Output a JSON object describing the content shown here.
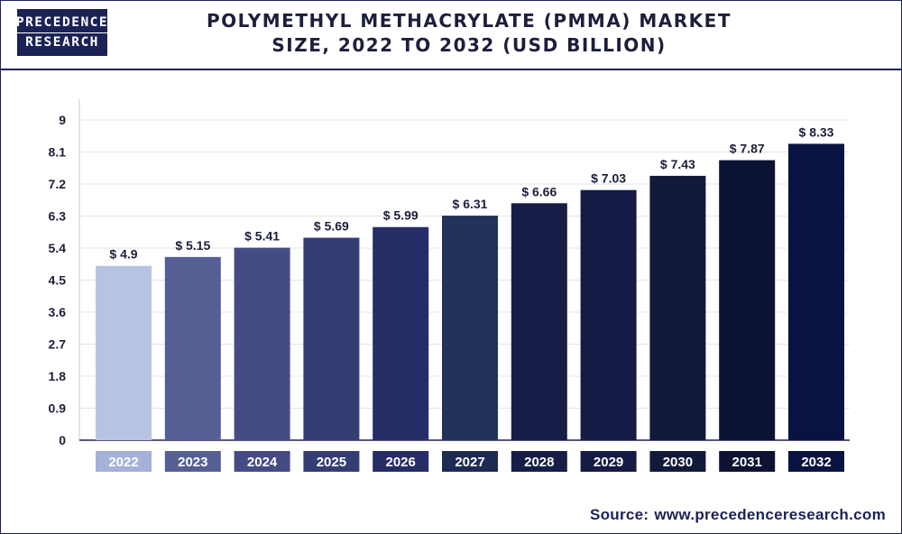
{
  "logo": {
    "line1": "PRECEDENCE",
    "line2": "RESEARCH"
  },
  "title": {
    "line1": "POLYMETHYL METHACRYLATE (PMMA) MARKET",
    "line2": "SIZE, 2022 TO 2032 (USD BILLION)"
  },
  "source": {
    "label": "Source:",
    "value": "www.precedenceresearch.com"
  },
  "chart_data": {
    "type": "bar",
    "title": "POLYMETHYL METHACRYLATE (PMMA) MARKET SIZE, 2022 TO 2032 (USD BILLION)",
    "xlabel": "",
    "ylabel": "",
    "categories": [
      "2022",
      "2023",
      "2024",
      "2025",
      "2026",
      "2027",
      "2028",
      "2029",
      "2030",
      "2031",
      "2032"
    ],
    "values": [
      4.9,
      5.15,
      5.41,
      5.69,
      5.99,
      6.31,
      6.66,
      7.03,
      7.43,
      7.87,
      8.33
    ],
    "value_labels": [
      "$ 4.9",
      "$ 5.15",
      "$ 5.41",
      "$ 5.69",
      "$ 5.99",
      "$ 6.31",
      "$ 6.66",
      "$ 7.03",
      "$ 7.43",
      "$ 7.87",
      "$ 8.33"
    ],
    "yticks": [
      "0",
      "0.9",
      "1.8",
      "2.7",
      "3.6",
      "4.5",
      "5.4",
      "6.3",
      "7.2",
      "8.1",
      "9"
    ],
    "ylim": [
      0,
      9
    ],
    "grid": true,
    "bar_colors": [
      "#b8c3e4",
      "#565f94",
      "#454c85",
      "#353d75",
      "#262d66",
      "#223259",
      "#161e47",
      "#141b44",
      "#121a3b",
      "#0c1233",
      "#0a1241"
    ],
    "category_box_colors": [
      "#a5b1d9",
      "#565f94",
      "#454c85",
      "#353d75",
      "#262d66",
      "#1e2a52",
      "#161e47",
      "#141b44",
      "#121a3b",
      "#0c1233",
      "#0a1241"
    ]
  }
}
